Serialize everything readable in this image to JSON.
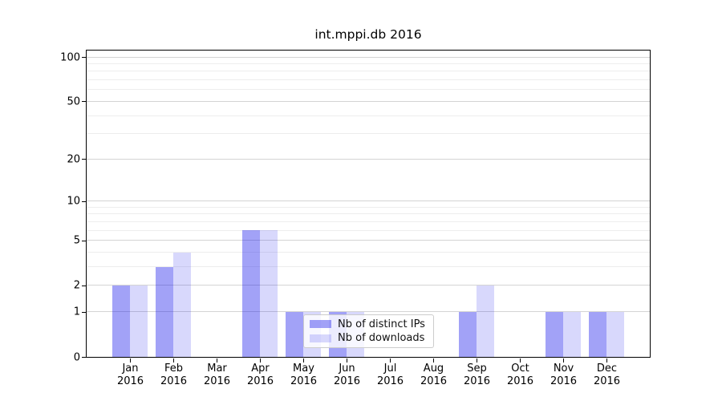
{
  "chart_data": {
    "type": "bar",
    "title": "int.mppi.db 2016",
    "categories": [
      "Jan",
      "Feb",
      "Mar",
      "Apr",
      "May",
      "Jun",
      "Jul",
      "Aug",
      "Sep",
      "Oct",
      "Nov",
      "Dec"
    ],
    "x_year_label": "2016",
    "series": [
      {
        "name": "Nb of distinct IPs",
        "color": "rgba(22,22,235,0.40)",
        "values": [
          2,
          3,
          0,
          6,
          1,
          1,
          0,
          0,
          1,
          0,
          1,
          1
        ]
      },
      {
        "name": "Nb of downloads",
        "color": "rgba(22,22,235,0.17)",
        "values": [
          2,
          4,
          0,
          6,
          1,
          1,
          0,
          0,
          2,
          0,
          1,
          1
        ]
      }
    ],
    "y_axis": {
      "ticks": [
        0,
        1,
        2,
        5,
        10,
        20,
        50,
        100
      ],
      "minor_ticks": [
        3,
        4,
        6,
        7,
        8,
        9,
        30,
        40,
        60,
        70,
        80,
        90
      ],
      "scale": "log10(1+v)",
      "ylim": [
        0,
        110.5
      ]
    },
    "xlabel": "",
    "ylabel": "",
    "grid": true,
    "legend_position": "lower-center-inside"
  },
  "colors": {
    "grid_major": "#d4d4d4",
    "grid_minor": "#ededed",
    "spine": "#000000",
    "background": "#ffffff"
  }
}
